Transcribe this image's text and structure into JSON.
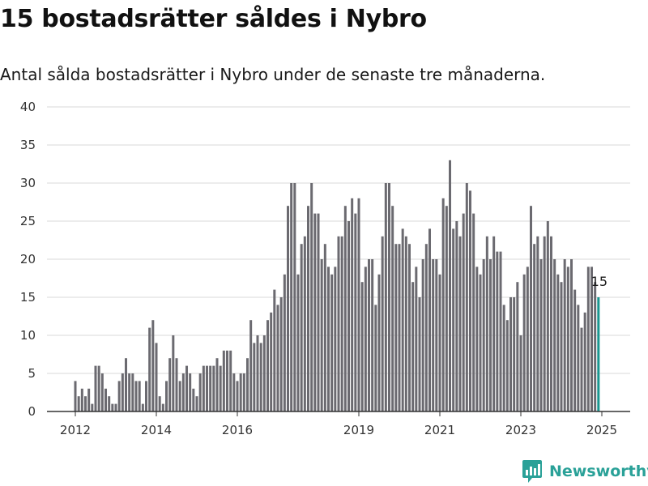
{
  "title": "15 bostadsrätter såldes i Nybro",
  "subtitle": "Antal sålda bostadsrätter i Nybro under de senaste tre månaderna.",
  "brand": {
    "name": "Newsworthy",
    "logo_icon": "bar-chart-logo-icon"
  },
  "colors": {
    "bar": "#6b6a70",
    "highlight": "#1a9690",
    "grid": "#d9d9d9",
    "axis": "#333333",
    "brand": "#2aa198"
  },
  "chart_data": {
    "type": "bar",
    "title": "15 bostadsrätter såldes i Nybro",
    "subtitle": "Antal sålda bostadsrätter i Nybro under de senaste tre månaderna.",
    "xlabel": "",
    "ylabel": "",
    "ylim": [
      0,
      40
    ],
    "yticks": [
      "0",
      "5",
      "10",
      "15",
      "20",
      "25",
      "30",
      "35",
      "40"
    ],
    "xticks": [
      "2012",
      "2014",
      "2016",
      "2019",
      "2021",
      "2023",
      "2025"
    ],
    "x_start": "2012-01",
    "x_end": "2025-01",
    "grid": true,
    "highlight_label": "15",
    "values": [
      4,
      2,
      3,
      2,
      3,
      1,
      6,
      6,
      5,
      3,
      2,
      1,
      1,
      4,
      5,
      7,
      5,
      5,
      4,
      4,
      1,
      4,
      11,
      12,
      9,
      2,
      1,
      4,
      7,
      10,
      7,
      4,
      5,
      6,
      5,
      3,
      2,
      5,
      6,
      6,
      6,
      6,
      7,
      6,
      8,
      8,
      8,
      5,
      4,
      5,
      5,
      7,
      12,
      9,
      10,
      9,
      10,
      12,
      13,
      16,
      14,
      15,
      18,
      27,
      30,
      30,
      18,
      22,
      23,
      27,
      30,
      26,
      26,
      20,
      22,
      19,
      18,
      19,
      23,
      23,
      27,
      25,
      28,
      26,
      28,
      17,
      19,
      20,
      20,
      14,
      18,
      23,
      30,
      30,
      27,
      22,
      22,
      24,
      23,
      22,
      17,
      19,
      15,
      20,
      22,
      24,
      20,
      20,
      18,
      28,
      27,
      33,
      24,
      25,
      23,
      26,
      30,
      29,
      26,
      19,
      18,
      20,
      23,
      20,
      23,
      21,
      21,
      14,
      12,
      15,
      15,
      17,
      10,
      18,
      19,
      27,
      22,
      23,
      20,
      23,
      25,
      23,
      20,
      18,
      17,
      20,
      19,
      20,
      16,
      14,
      11,
      13,
      19,
      19,
      17,
      15
    ]
  }
}
